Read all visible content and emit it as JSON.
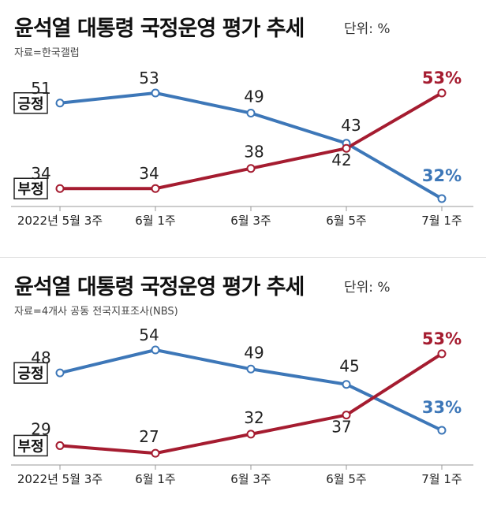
{
  "chart_data": [
    {
      "type": "line",
      "title": "윤석열 대통령 국정운영 평가 추세",
      "unit": "단위: %",
      "source": "자료=한국갤럽",
      "categories": [
        "2022년 5월 3주",
        "6월 1주",
        "6월 3주",
        "6월 5주",
        "7월 1주"
      ],
      "series": [
        {
          "name": "긍정",
          "values": [
            51,
            53,
            49,
            43,
            32
          ],
          "color": "#3d77b8",
          "labels": [
            "51",
            "53",
            "49",
            "43",
            "32%"
          ]
        },
        {
          "name": "부정",
          "values": [
            34,
            34,
            38,
            42,
            53
          ],
          "color": "#a51c30",
          "labels": [
            "34",
            "34",
            "38",
            "42",
            "53%"
          ]
        }
      ]
    },
    {
      "type": "line",
      "title": "윤석열 대통령 국정운영 평가 추세",
      "unit": "단위: %",
      "source": "자료=4개사 공동 전국지표조사(NBS)",
      "categories": [
        "2022년 5월 3주",
        "6월 1주",
        "6월 3주",
        "6월 5주",
        "7월 1주"
      ],
      "series": [
        {
          "name": "긍정",
          "values": [
            48,
            54,
            49,
            45,
            33
          ],
          "color": "#3d77b8",
          "labels": [
            "48",
            "54",
            "49",
            "45",
            "33%"
          ]
        },
        {
          "name": "부정",
          "values": [
            29,
            27,
            32,
            37,
            53
          ],
          "color": "#a51c30",
          "labels": [
            "29",
            "27",
            "32",
            "37",
            "53%"
          ]
        }
      ]
    }
  ]
}
